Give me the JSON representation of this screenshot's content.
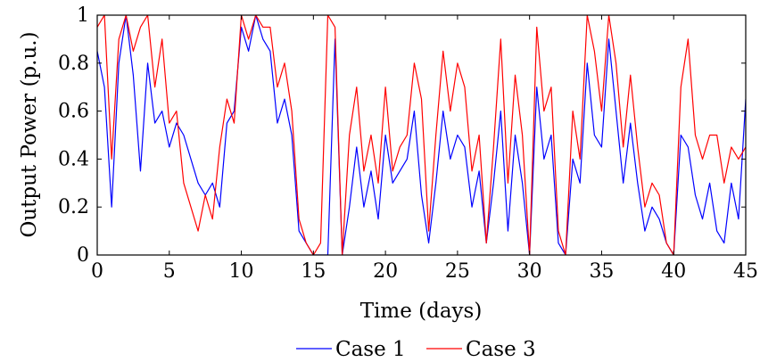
{
  "chart_data": {
    "type": "line",
    "title": "",
    "xlabel": "Time (days)",
    "ylabel": "Output Power (p.u.)",
    "xlim": [
      0,
      45
    ],
    "ylim": [
      0,
      1
    ],
    "xticks": [
      0,
      5,
      10,
      15,
      20,
      25,
      30,
      35,
      40,
      45
    ],
    "yticks": [
      0,
      0.2,
      0.4,
      0.6,
      0.8,
      1
    ],
    "grid": false,
    "legend_position": "bottom-center",
    "series": [
      {
        "name": "Case 1",
        "color": "#0000ff",
        "x": [
          0,
          0.5,
          1,
          1.5,
          2,
          2.5,
          3,
          3.5,
          4,
          4.5,
          5,
          5.5,
          6,
          6.5,
          7,
          7.5,
          8,
          8.5,
          9,
          9.5,
          10,
          10.5,
          11,
          11.5,
          12,
          12.5,
          13,
          13.5,
          14,
          14.5,
          15,
          15.5,
          16,
          16.5,
          17,
          17.5,
          18,
          18.5,
          19,
          19.5,
          20,
          20.5,
          21,
          21.5,
          22,
          22.5,
          23,
          23.5,
          24,
          24.5,
          25,
          25.5,
          26,
          26.5,
          27,
          27.5,
          28,
          28.5,
          29,
          29.5,
          30,
          30.5,
          31,
          31.5,
          32,
          32.5,
          33,
          33.5,
          34,
          34.5,
          35,
          35.5,
          36,
          36.5,
          37,
          37.5,
          38,
          38.5,
          39,
          39.5,
          40,
          40.5,
          41,
          41.5,
          42,
          42.5,
          43,
          43.5,
          44,
          44.5,
          45
        ],
        "y": [
          0.85,
          0.7,
          0.2,
          0.8,
          1.0,
          0.75,
          0.35,
          0.8,
          0.55,
          0.6,
          0.45,
          0.55,
          0.5,
          0.4,
          0.3,
          0.25,
          0.3,
          0.2,
          0.55,
          0.6,
          0.95,
          0.85,
          1.0,
          0.9,
          0.85,
          0.55,
          0.65,
          0.5,
          0.1,
          0.05,
          0.0,
          0.0,
          0.0,
          0.9,
          0.0,
          0.2,
          0.45,
          0.2,
          0.35,
          0.15,
          0.5,
          0.3,
          0.35,
          0.4,
          0.6,
          0.25,
          0.05,
          0.3,
          0.6,
          0.4,
          0.5,
          0.45,
          0.2,
          0.35,
          0.05,
          0.3,
          0.6,
          0.1,
          0.5,
          0.3,
          0.0,
          0.7,
          0.4,
          0.5,
          0.05,
          0.0,
          0.4,
          0.3,
          0.8,
          0.5,
          0.45,
          0.9,
          0.6,
          0.3,
          0.55,
          0.3,
          0.1,
          0.2,
          0.15,
          0.05,
          0.0,
          0.5,
          0.45,
          0.25,
          0.15,
          0.3,
          0.1,
          0.05,
          0.3,
          0.15,
          0.65
        ]
      },
      {
        "name": "Case 3",
        "color": "#ff0000",
        "x": [
          0,
          0.5,
          1,
          1.5,
          2,
          2.5,
          3,
          3.5,
          4,
          4.5,
          5,
          5.5,
          6,
          6.5,
          7,
          7.5,
          8,
          8.5,
          9,
          9.5,
          10,
          10.5,
          11,
          11.5,
          12,
          12.5,
          13,
          13.5,
          14,
          14.5,
          15,
          15.5,
          16,
          16.5,
          17,
          17.5,
          18,
          18.5,
          19,
          19.5,
          20,
          20.5,
          21,
          21.5,
          22,
          22.5,
          23,
          23.5,
          24,
          24.5,
          25,
          25.5,
          26,
          26.5,
          27,
          27.5,
          28,
          28.5,
          29,
          29.5,
          30,
          30.5,
          31,
          31.5,
          32,
          32.5,
          33,
          33.5,
          34,
          34.5,
          35,
          35.5,
          36,
          36.5,
          37,
          37.5,
          38,
          38.5,
          39,
          39.5,
          40,
          40.5,
          41,
          41.5,
          42,
          42.5,
          43,
          43.5,
          44,
          44.5,
          45
        ],
        "y": [
          0.95,
          1.0,
          0.4,
          0.9,
          1.0,
          0.85,
          0.95,
          1.0,
          0.7,
          0.9,
          0.55,
          0.6,
          0.3,
          0.2,
          0.1,
          0.25,
          0.15,
          0.45,
          0.65,
          0.55,
          1.0,
          0.9,
          1.0,
          0.95,
          0.95,
          0.7,
          0.8,
          0.6,
          0.15,
          0.05,
          0.0,
          0.05,
          1.0,
          0.95,
          0.0,
          0.5,
          0.7,
          0.35,
          0.5,
          0.3,
          0.7,
          0.35,
          0.45,
          0.5,
          0.8,
          0.65,
          0.1,
          0.5,
          0.85,
          0.6,
          0.8,
          0.7,
          0.35,
          0.5,
          0.05,
          0.45,
          0.9,
          0.3,
          0.75,
          0.5,
          0.0,
          0.95,
          0.6,
          0.7,
          0.1,
          0.0,
          0.6,
          0.4,
          1.0,
          0.85,
          0.6,
          1.0,
          0.8,
          0.45,
          0.75,
          0.45,
          0.2,
          0.3,
          0.25,
          0.05,
          0.0,
          0.7,
          0.9,
          0.5,
          0.4,
          0.5,
          0.5,
          0.3,
          0.45,
          0.4,
          0.45
        ]
      }
    ]
  }
}
